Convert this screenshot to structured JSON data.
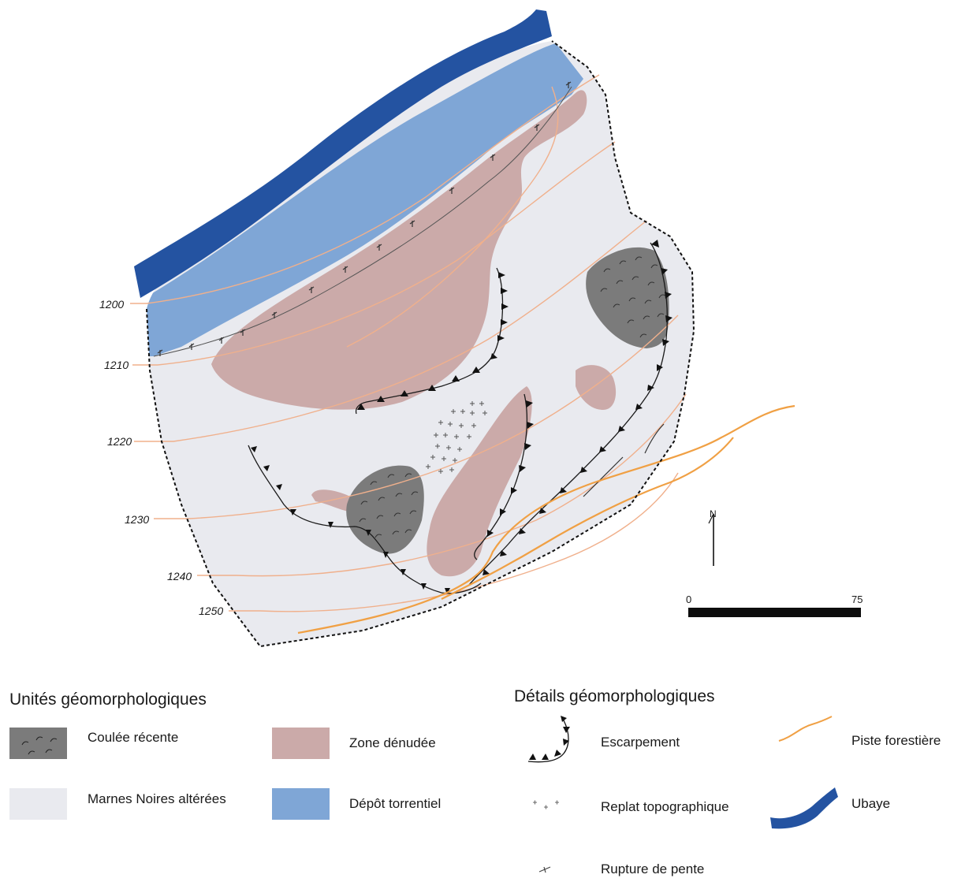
{
  "map": {
    "contours": [
      {
        "label": "1200"
      },
      {
        "label": "1210"
      },
      {
        "label": "1220"
      },
      {
        "label": "1230"
      },
      {
        "label": "1240"
      },
      {
        "label": "1250"
      }
    ],
    "north_label": "N",
    "scale": {
      "start": "0",
      "end": "75"
    }
  },
  "legend": {
    "units_heading": "Unités géomorphologiques",
    "details_heading": "Détails géomorphologiques",
    "units": [
      {
        "label": "Coulée récente",
        "color": "#7b7b7b"
      },
      {
        "label": "Zone dénudée",
        "color": "#cbaaa9"
      },
      {
        "label": "Marnes Noires altérées",
        "color": "#e9eaef"
      },
      {
        "label": "Dépôt torrentiel",
        "color": "#7fa6d6"
      }
    ],
    "details": [
      {
        "label": "Escarpement"
      },
      {
        "label": "Piste forestière",
        "color": "#f0a044"
      },
      {
        "label": "Replat topographique"
      },
      {
        "label": "Ubaye",
        "color": "#2453a1"
      },
      {
        "label": "Rupture de pente"
      }
    ]
  }
}
